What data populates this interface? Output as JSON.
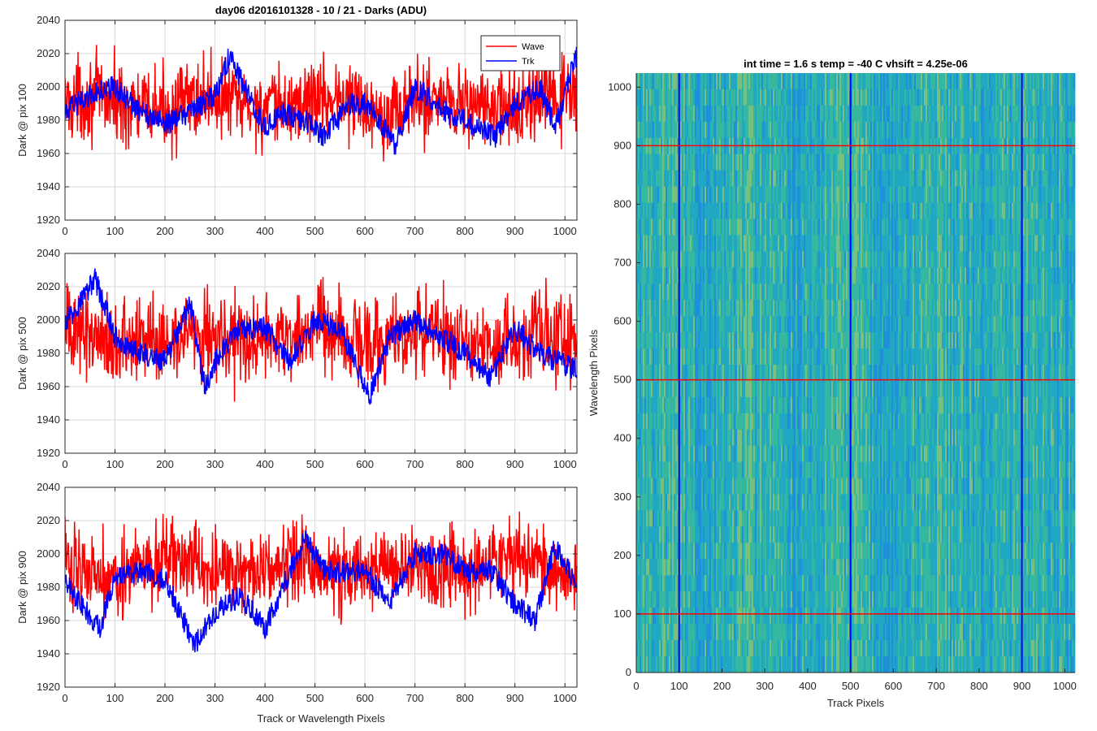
{
  "figure_title": "day06 d2016101328 - 10 / 21 - Darks (ADU)",
  "colors": {
    "wave": "#ff0000",
    "trk": "#0000ff",
    "grid": "#d9d9d9",
    "axes": "#262626"
  },
  "chart_data": [
    {
      "type": "line",
      "ylabel": "Dark @ pix 100",
      "xlabel": "",
      "xlim": [
        0,
        1024
      ],
      "ylim": [
        1920,
        2040
      ],
      "xticks": [
        0,
        100,
        200,
        300,
        400,
        500,
        600,
        700,
        800,
        900,
        1000
      ],
      "yticks": [
        1920,
        1940,
        1960,
        1980,
        2000,
        2020,
        2040
      ],
      "grid": true,
      "legend": {
        "placement": "top-right",
        "entries": [
          "Wave",
          "Trk"
        ]
      },
      "series": [
        {
          "name": "Wave",
          "color": "#ff0000",
          "n_points": 1024,
          "mean": 1990,
          "noise": 12,
          "ripple": 4,
          "min": 1935,
          "max": 2035
        },
        {
          "name": "Trk",
          "color": "#0000ff",
          "n_points": 1024,
          "x": [
            0,
            50,
            100,
            150,
            200,
            250,
            300,
            330,
            350,
            400,
            430,
            480,
            520,
            570,
            610,
            660,
            700,
            760,
            800,
            860,
            900,
            950,
            980,
            1024
          ],
          "y": [
            1985,
            1995,
            2000,
            1985,
            1978,
            1985,
            1995,
            2020,
            2005,
            1975,
            1985,
            1980,
            1970,
            1990,
            1990,
            1965,
            2000,
            1985,
            1980,
            1970,
            1990,
            2000,
            1975,
            2020
          ]
        }
      ]
    },
    {
      "type": "line",
      "ylabel": "Dark @ pix 500",
      "xlabel": "",
      "xlim": [
        0,
        1024
      ],
      "ylim": [
        1920,
        2040
      ],
      "xticks": [
        0,
        100,
        200,
        300,
        400,
        500,
        600,
        700,
        800,
        900,
        1000
      ],
      "yticks": [
        1920,
        1940,
        1960,
        1980,
        2000,
        2020,
        2040
      ],
      "grid": true,
      "series": [
        {
          "name": "Wave",
          "color": "#ff0000",
          "n_points": 1024,
          "mean": 1990,
          "noise": 13,
          "ripple": 4,
          "min": 1928,
          "max": 2040
        },
        {
          "name": "Trk",
          "color": "#0000ff",
          "n_points": 1024,
          "x": [
            0,
            20,
            60,
            100,
            150,
            200,
            250,
            280,
            300,
            350,
            400,
            450,
            500,
            550,
            610,
            650,
            700,
            750,
            800,
            850,
            900,
            950,
            1024
          ],
          "y": [
            2000,
            2005,
            2025,
            1990,
            1980,
            1975,
            2010,
            1960,
            1975,
            1995,
            1995,
            1975,
            2000,
            1995,
            1955,
            1990,
            2000,
            1990,
            1980,
            1965,
            1995,
            1980,
            1970
          ]
        }
      ]
    },
    {
      "type": "line",
      "ylabel": "Dark @ pix 900",
      "xlabel": "Track or Wavelength Pixels",
      "xlim": [
        0,
        1024
      ],
      "ylim": [
        1920,
        2040
      ],
      "xticks": [
        0,
        100,
        200,
        300,
        400,
        500,
        600,
        700,
        800,
        900,
        1000
      ],
      "yticks": [
        1920,
        1940,
        1960,
        1980,
        2000,
        2020,
        2040
      ],
      "grid": true,
      "series": [
        {
          "name": "Wave",
          "color": "#ff0000",
          "n_points": 1024,
          "mean": 1992,
          "noise": 12,
          "ripple": 4,
          "min": 1932,
          "max": 2037
        },
        {
          "name": "Trk",
          "color": "#0000ff",
          "n_points": 1024,
          "x": [
            0,
            30,
            70,
            100,
            150,
            200,
            260,
            300,
            350,
            400,
            480,
            520,
            600,
            650,
            700,
            760,
            800,
            850,
            900,
            940,
            980,
            1024
          ],
          "y": [
            1985,
            1970,
            1955,
            1985,
            1990,
            1985,
            1945,
            1965,
            1975,
            1955,
            2010,
            1990,
            1990,
            1970,
            2000,
            2000,
            1990,
            1990,
            1970,
            1960,
            2005,
            1980
          ]
        }
      ]
    },
    {
      "type": "heatmap",
      "title": "int time = 1.6 s    temp = -40 C    vhsift = 4.25e-06",
      "xlabel": "Track Pixels",
      "ylabel": "Wavelength Pixels",
      "xlim": [
        0,
        1024
      ],
      "ylim": [
        0,
        1024
      ],
      "xticks": [
        0,
        100,
        200,
        300,
        400,
        500,
        600,
        700,
        800,
        900,
        1000
      ],
      "yticks": [
        0,
        100,
        200,
        300,
        400,
        500,
        600,
        700,
        800,
        900,
        1000
      ],
      "grid": false,
      "colormap": [
        "#1e8fd8",
        "#20a8c2",
        "#35b7a0",
        "#78c080"
      ],
      "vertical_lines": {
        "values": [
          100,
          500,
          900
        ],
        "color": "#0000ff"
      },
      "horizontal_lines": {
        "values": [
          100,
          500,
          900
        ],
        "color": "#ff0000"
      }
    }
  ]
}
